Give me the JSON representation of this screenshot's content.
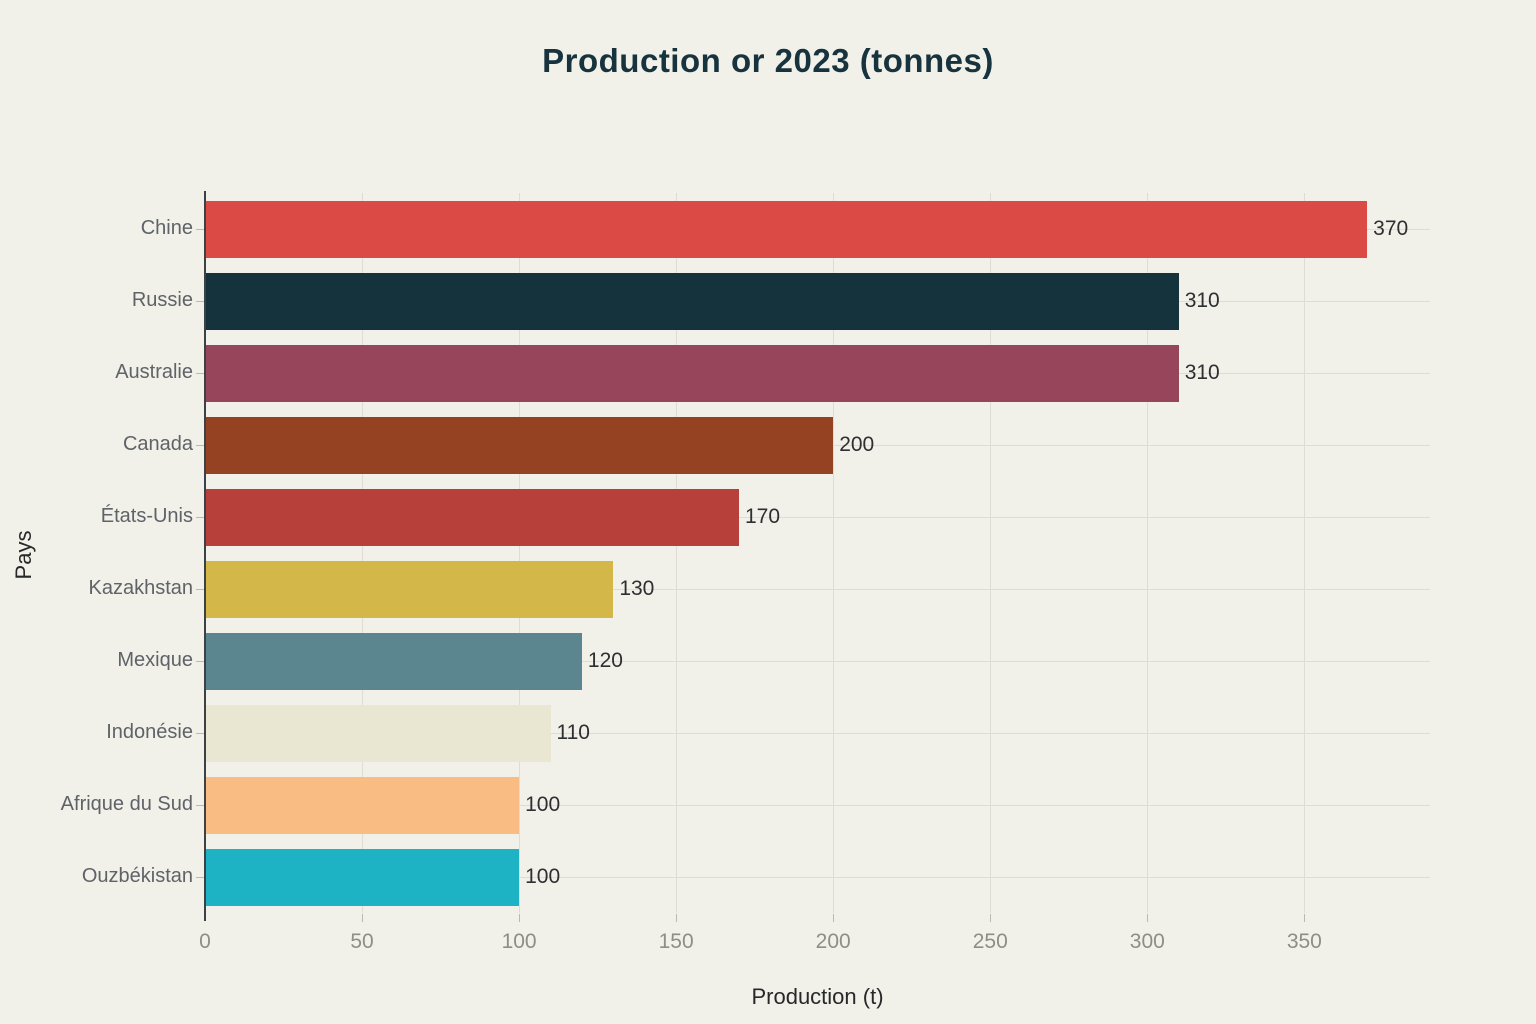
{
  "title": "Production or 2023 (tonnes)",
  "colors": {
    "background": "#f1f0e9",
    "title": "#16333e",
    "grid": "#dedcd3",
    "axis_line": "#3c4145",
    "tick": "#b9b9b1",
    "category_label": "#5f6368",
    "x_tick_label": "#8c8e89",
    "value_label": "#2d2f31"
  },
  "chart_data": {
    "type": "bar",
    "orientation": "horizontal",
    "title": "Production or 2023 (tonnes)",
    "xlabel": "Production (t)",
    "ylabel": "Pays",
    "categories": [
      "Chine",
      "Russie",
      "Australie",
      "Canada",
      "États-Unis",
      "Kazakhstan",
      "Mexique",
      "Indonésie",
      "Afrique du Sud",
      "Ouzbékistan"
    ],
    "values": [
      370,
      310,
      310,
      200,
      170,
      130,
      120,
      110,
      100,
      100
    ],
    "value_labels": [
      "370",
      "310",
      "310",
      "200",
      "170",
      "130",
      "120",
      "110",
      "100",
      "100"
    ],
    "bar_colors": [
      "#db4a45",
      "#15333d",
      "#96455a",
      "#954222",
      "#b8403b",
      "#d3b748",
      "#5b868f",
      "#e9e7d1",
      "#f9bd83",
      "#1eb2c5"
    ],
    "xticks": [
      0,
      50,
      100,
      150,
      200,
      250,
      300,
      350
    ],
    "xtick_labels": [
      "0",
      "50",
      "100",
      "150",
      "200",
      "250",
      "300",
      "350"
    ],
    "xlim": [
      0,
      390
    ],
    "grid": true,
    "legend": false
  }
}
